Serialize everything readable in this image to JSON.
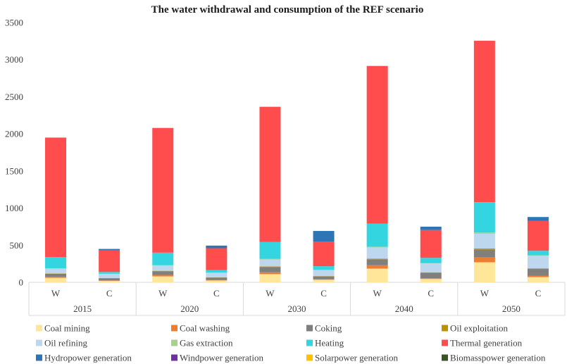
{
  "chart_data": {
    "type": "bar",
    "stacked": true,
    "title": "The water withdrawal and consumption of the REF scenario",
    "xlabel": "",
    "ylabel": "",
    "ylim": [
      0,
      3500
    ],
    "yticks": [
      0,
      500,
      1000,
      1500,
      2000,
      2500,
      3000,
      3500
    ],
    "grid": false,
    "legend_position": "bottom",
    "groups": [
      "2015",
      "2020",
      "2030",
      "2040",
      "2050"
    ],
    "categories": [
      "W",
      "C",
      "W",
      "C",
      "W",
      "C",
      "W",
      "C",
      "W",
      "C"
    ],
    "series": [
      {
        "name": "Coal mining",
        "color": "#FFE699",
        "values": [
          60,
          20,
          80,
          25,
          110,
          35,
          185,
          45,
          270,
          70
        ]
      },
      {
        "name": "Coal washing",
        "color": "#ED7D31",
        "values": [
          15,
          5,
          20,
          5,
          25,
          5,
          45,
          10,
          65,
          20
        ]
      },
      {
        "name": "Coking",
        "color": "#7F7F7F",
        "values": [
          40,
          30,
          50,
          35,
          70,
          40,
          80,
          75,
          105,
          90
        ]
      },
      {
        "name": "Oil exploitation",
        "color": "#BF9000",
        "values": [
          5,
          3,
          5,
          3,
          8,
          4,
          10,
          5,
          15,
          8
        ]
      },
      {
        "name": "Oil refining",
        "color": "#BDD7EE",
        "values": [
          65,
          55,
          70,
          60,
          95,
          80,
          150,
          120,
          200,
          170
        ]
      },
      {
        "name": "Gas extraction",
        "color": "#A9D18E",
        "values": [
          5,
          2,
          5,
          2,
          7,
          3,
          10,
          5,
          15,
          7
        ]
      },
      {
        "name": "Heating",
        "color": "#33D6E0",
        "values": [
          150,
          25,
          170,
          35,
          230,
          50,
          310,
          70,
          410,
          60
        ]
      },
      {
        "name": "Thermal generation",
        "color": "#FF4C4C",
        "values": [
          1610,
          290,
          1680,
          295,
          1820,
          330,
          2125,
          375,
          2175,
          405
        ]
      },
      {
        "name": "Hydropower generation",
        "color": "#2E75B6",
        "values": [
          0,
          20,
          0,
          35,
          0,
          145,
          0,
          45,
          0,
          50
        ]
      },
      {
        "name": "Windpower generation",
        "color": "#7030A0",
        "values": [
          0,
          0,
          0,
          0,
          0,
          0,
          0,
          0,
          0,
          0
        ]
      },
      {
        "name": "Solarpower generation",
        "color": "#FFC000",
        "values": [
          0,
          0,
          0,
          0,
          0,
          0,
          0,
          0,
          0,
          0
        ]
      },
      {
        "name": "Biomasspower generation",
        "color": "#375623",
        "values": [
          0,
          0,
          0,
          0,
          0,
          0,
          0,
          0,
          0,
          0
        ]
      }
    ]
  }
}
